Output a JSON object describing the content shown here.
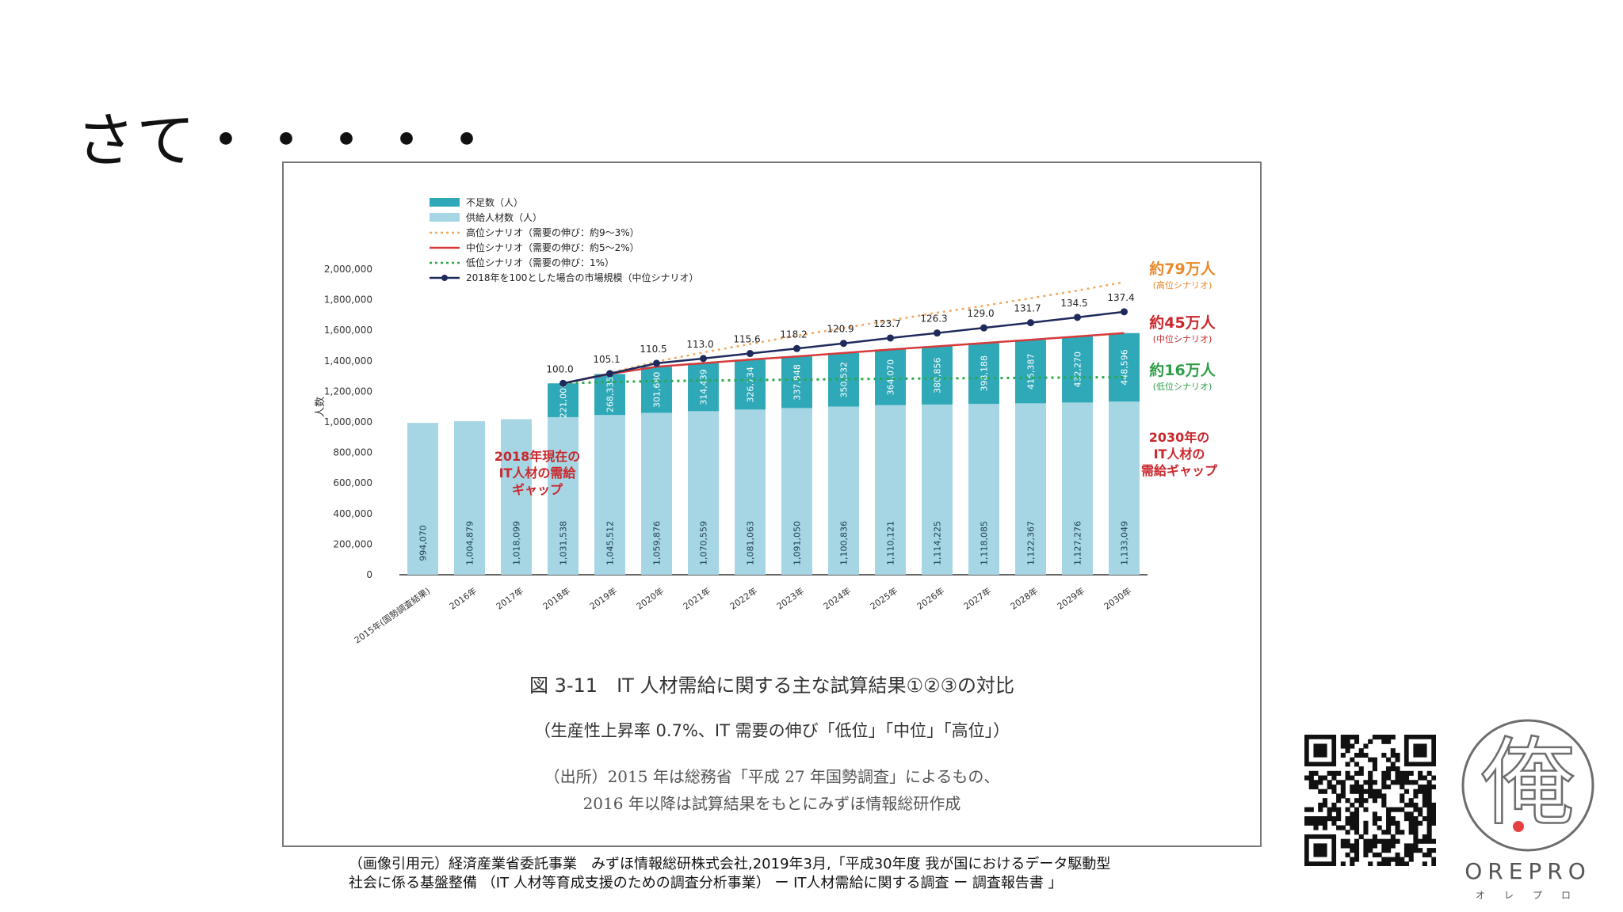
{
  "slide": {
    "title": "さて・・・・・"
  },
  "chart_data": {
    "type": "bar",
    "ylabel": "人数",
    "ylim": [
      0,
      2000000
    ],
    "yticks": [
      "2,000,000",
      "1,800,000",
      "1,600,000",
      "1,400,000",
      "1,200,000",
      "1,000,000",
      "800,000",
      "600,000",
      "400,000",
      "200,000",
      "0"
    ],
    "categories": [
      "2015年(国勢調査結果)",
      "2016年",
      "2017年",
      "2018年",
      "2019年",
      "2020年",
      "2021年",
      "2022年",
      "2023年",
      "2024年",
      "2025年",
      "2026年",
      "2027年",
      "2028年",
      "2029年",
      "2030年"
    ],
    "series": [
      {
        "name": "供給人材数（人）",
        "values": [
          994070,
          1004879,
          1018099,
          1031538,
          1045512,
          1059876,
          1070559,
          1081063,
          1091050,
          1100836,
          1110121,
          1114225,
          1118085,
          1122367,
          1127276,
          1133049
        ],
        "labels": [
          "994,070",
          "1,004,879",
          "1,018,099",
          "1,031,538",
          "1,045,512",
          "1,059,876",
          "1,070,559",
          "1,081,063",
          "1,091,050",
          "1,100,836",
          "1,110,121",
          "1,114,225",
          "1,118,085",
          "1,122,367",
          "1,127,276",
          "1,133,049"
        ],
        "color": "#a6d6e4"
      },
      {
        "name": "不足数（人）",
        "values": [
          null,
          null,
          null,
          221000,
          268335,
          301680,
          314439,
          326734,
          337848,
          350532,
          364070,
          380856,
          398188,
          415387,
          432270,
          448596
        ],
        "labels": [
          "",
          "",
          "",
          "221,000",
          "268,335",
          "301,680",
          "314,439",
          "326,734",
          "337,848",
          "350,532",
          "364,070",
          "380,856",
          "398,188",
          "415,387",
          "432,270",
          "448,596"
        ],
        "color": "#2fa8b8"
      },
      {
        "name": "高位シナリオ（需要の伸び：約9〜3%）",
        "values": [
          null,
          null,
          null,
          1252538,
          1321000,
          1395000,
          1455000,
          1510000,
          1565000,
          1615000,
          1665000,
          1715000,
          1760000,
          1810000,
          1860000,
          1915000
        ],
        "color": "#f0a860",
        "style": "dotted"
      },
      {
        "name": "中位シナリオ（需要の伸び：約5〜2%）",
        "values": [
          null,
          null,
          null,
          1252538,
          1313847,
          1361556,
          1384998,
          1407797,
          1428898,
          1451368,
          1474191,
          1495081,
          1516273,
          1537754,
          1559546,
          1581645
        ],
        "color": "#d63a3a",
        "style": "solid"
      },
      {
        "name": "低位シナリオ（需要の伸び：1%）",
        "values": [
          null,
          null,
          null,
          1252538,
          1262000,
          1267000,
          1271000,
          1274000,
          1277000,
          1280000,
          1283000,
          1285000,
          1287000,
          1289000,
          1291000,
          1293000
        ],
        "color": "#2aa84a",
        "style": "dotted"
      },
      {
        "name": "2018年を100とした場合の市場規模（中位シナリオ）",
        "values": [
          null,
          null,
          null,
          100.0,
          105.1,
          110.5,
          113.0,
          115.6,
          118.2,
          120.9,
          123.7,
          126.3,
          129.0,
          131.7,
          134.5,
          137.4
        ],
        "labels": [
          "",
          "",
          "",
          "100.0",
          "105.1",
          "110.5",
          "113.0",
          "115.6",
          "118.2",
          "120.9",
          "123.7",
          "126.3",
          "129.0",
          "131.7",
          "134.5",
          "137.4"
        ],
        "color": "#1e2a5c",
        "style": "line-marker"
      }
    ],
    "annotations": {
      "high": {
        "value": "約79万人",
        "scenario": "(高位シナリオ)",
        "color": "#e8892a"
      },
      "mid": {
        "value": "約45万人",
        "scenario": "(中位シナリオ)",
        "color": "#c9282d"
      },
      "low": {
        "value": "約16万人",
        "scenario": "(低位シナリオ)",
        "color": "#2f9d48"
      },
      "gap2018": [
        "2018年現在の",
        "IT人材の需給",
        "ギャップ"
      ],
      "gap2030": [
        "2030年の",
        "IT人材の",
        "需給ギャップ"
      ]
    },
    "title": "図 3-11　IT 人材需給に関する主な試算結果①②③の対比",
    "subtitle": "（生産性上昇率 0.7%、IT 需要の伸び「低位」「中位」「高位」）",
    "source": [
      "（出所）2015 年は総務省「平成 27 年国勢調査」によるもの、",
      "2016 年以降は試算結果をもとにみずほ情報総研作成"
    ],
    "legend_position": "top-left"
  },
  "citation": [
    "（画像引用元）経済産業省委託事業　みずほ情報総研株式会社,2019年3月,「平成30年度 我が国におけるデータ駆動型",
    "社会に係る基盤整備 （IT 人材等育成支援のための調査分析事業） ー IT人材需給に関する調査 ー 調査報告書 」"
  ],
  "logo": {
    "glyph": "俺",
    "word": "OREPRO",
    "kana": "オレプロ",
    "accent": "#e84040"
  }
}
